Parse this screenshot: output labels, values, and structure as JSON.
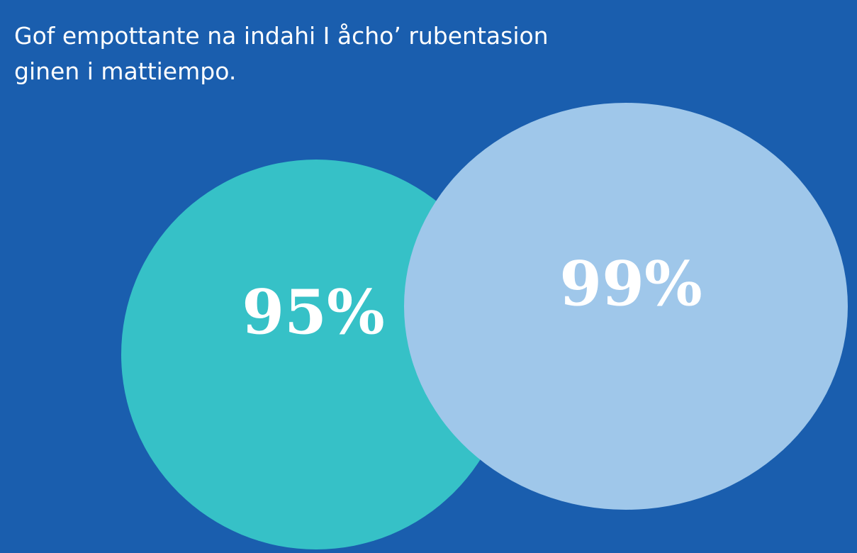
{
  "heading": {
    "lines": [
      "Gof empottante na indahi I  åcho’ rubentasion",
      "ginen i mattiempo."
    ]
  },
  "circles": [
    {
      "label": "95%"
    },
    {
      "label": "99%"
    }
  ]
}
